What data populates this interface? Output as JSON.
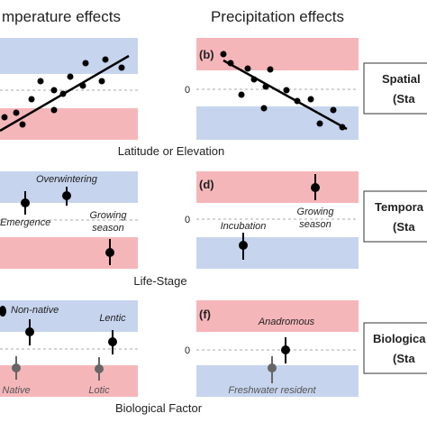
{
  "header": {
    "left": "mperature effects",
    "right": "Precipitation effects"
  },
  "panels": [
    {
      "label": "",
      "axis_label": "Latitude or Elevation"
    },
    {
      "label": "(b)",
      "zero": "0"
    },
    {
      "label": "",
      "axis_label": "Life-Stage",
      "notes": [
        "Overwintering",
        "Emergence",
        "Growing",
        "season"
      ]
    },
    {
      "label": "(d)",
      "zero": "0",
      "notes": [
        "Incubation",
        "Growing",
        "season"
      ]
    },
    {
      "label": "",
      "axis_label": "Biological Factor",
      "notes": [
        "Non-native",
        "Lentic",
        "Native",
        "Lotic"
      ]
    },
    {
      "label": "(f)",
      "zero": "0",
      "notes": [
        "Anadromous",
        "Freshwater resident"
      ]
    }
  ],
  "boxes": [
    {
      "title": "Spatial",
      "sub": "(Sta"
    },
    {
      "title": "Tempora",
      "sub": "(Sta"
    },
    {
      "title": "Biologica",
      "sub": "(Sta"
    }
  ]
}
